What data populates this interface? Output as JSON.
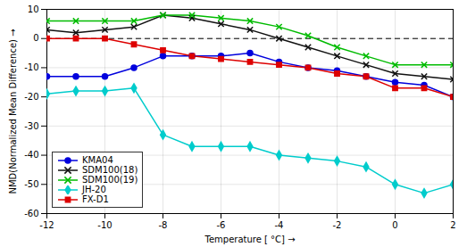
{
  "chart_data": {
    "type": "line",
    "xlabel": "Temperature [ °C]",
    "ylabel": "NMD(Normalized Mean Difference)",
    "x": [
      -12,
      -11,
      -10,
      -9,
      -8,
      -7,
      -6,
      -5,
      -4,
      -3,
      -2,
      -1,
      0,
      1,
      2
    ],
    "series": [
      {
        "name": "KMA04",
        "color": "#0000dd",
        "marker": "circle",
        "values": [
          -13,
          -13,
          -13,
          -10,
          -6,
          -6,
          -6,
          -5,
          -8,
          -10,
          -11,
          -13,
          -15,
          -16,
          -20
        ]
      },
      {
        "name": "SDM100(18)",
        "color": "#111111",
        "marker": "times",
        "values": [
          3,
          2,
          3,
          4,
          8,
          7,
          5,
          3,
          0,
          -3,
          -6,
          -9,
          -12,
          -13,
          -14
        ]
      },
      {
        "name": "SDM100(19)",
        "color": "#00bb00",
        "marker": "times",
        "values": [
          6,
          6,
          6,
          6,
          8,
          8,
          7,
          6,
          4,
          1,
          -3,
          -6,
          -9,
          -9,
          -9
        ]
      },
      {
        "name": "JH-20",
        "color": "#00cccc",
        "marker": "diamond",
        "values": [
          -19,
          -18,
          -18,
          -17,
          -33,
          -37,
          -37,
          -37,
          -40,
          -41,
          -42,
          -44,
          -50,
          -53,
          -50
        ]
      },
      {
        "name": "FX-D1",
        "color": "#dd0000",
        "marker": "square",
        "values": [
          0,
          0,
          0,
          -2,
          -4,
          -6,
          -7,
          -8,
          -9,
          -10,
          -12,
          -13,
          -17,
          -17,
          -20
        ]
      }
    ],
    "reference_line": {
      "y": 0,
      "line_style": "dashed"
    },
    "xlim": [
      -12,
      2
    ],
    "ylim": [
      -60,
      10
    ],
    "xticks": [
      -12,
      -10,
      -8,
      -6,
      -4,
      -2,
      0,
      2
    ],
    "yticks": [
      -60,
      -50,
      -40,
      -30,
      -20,
      -10,
      0,
      10
    ],
    "grid": true,
    "legend": "lower left"
  }
}
